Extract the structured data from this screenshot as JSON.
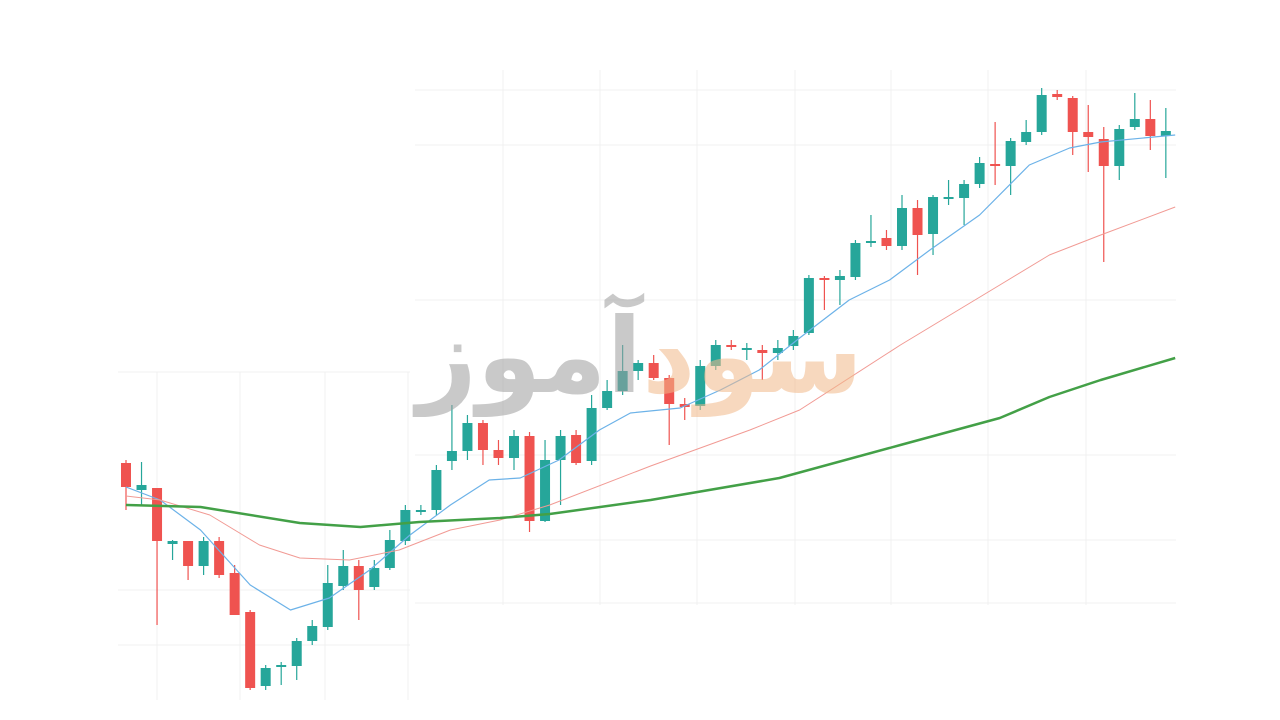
{
  "chart_data": {
    "type": "candlestick",
    "watermark": {
      "first": "سود",
      "second": "آموز"
    },
    "up_color": "#26a69a",
    "down_color": "#ef5350",
    "ylim": [
      0,
      720
    ],
    "open": [
      257,
      230,
      232,
      176,
      179,
      154,
      179,
      147,
      108,
      34,
      53,
      54,
      79,
      93,
      134,
      154,
      133,
      152,
      179,
      208,
      210,
      259,
      269,
      297,
      270,
      262,
      284,
      199,
      260,
      285,
      259,
      312,
      329,
      349,
      357,
      342,
      316,
      314,
      354,
      375,
      370,
      370,
      367,
      374,
      387,
      442,
      440,
      443,
      477,
      482,
      474,
      512,
      486,
      521,
      522,
      536,
      556,
      554,
      578,
      588,
      626,
      622,
      588,
      581,
      554,
      593,
      601,
      584
    ],
    "high": [
      260,
      258,
      232,
      180,
      179,
      183,
      183,
      155,
      110,
      55,
      58,
      82,
      100,
      155,
      170,
      160,
      160,
      190,
      215,
      215,
      255,
      315,
      305,
      300,
      280,
      290,
      288,
      280,
      290,
      290,
      325,
      340,
      375,
      360,
      365,
      345,
      322,
      360,
      380,
      380,
      377,
      375,
      380,
      390,
      445,
      444,
      450,
      480,
      505,
      490,
      525,
      520,
      525,
      540,
      540,
      563,
      598,
      582,
      600,
      632,
      630,
      624,
      615,
      593,
      595,
      627,
      620,
      612
    ],
    "low": [
      210,
      215,
      95,
      160,
      140,
      145,
      142,
      105,
      30,
      30,
      35,
      40,
      75,
      90,
      130,
      100,
      130,
      150,
      175,
      205,
      205,
      250,
      260,
      255,
      255,
      250,
      188,
      198,
      215,
      255,
      255,
      310,
      325,
      340,
      340,
      275,
      300,
      310,
      350,
      370,
      360,
      340,
      360,
      370,
      385,
      410,
      415,
      440,
      473,
      470,
      470,
      445,
      465,
      515,
      495,
      532,
      535,
      525,
      575,
      585,
      620,
      565,
      548,
      458,
      540,
      590,
      570,
      542
    ],
    "close": [
      233,
      235,
      179,
      179,
      154,
      179,
      145,
      105,
      32,
      52,
      55,
      79,
      94,
      137,
      154,
      130,
      152,
      180,
      210,
      210,
      250,
      269,
      297,
      270,
      262,
      284,
      199,
      260,
      284,
      257,
      312,
      329,
      349,
      357,
      342,
      316,
      313,
      354,
      375,
      373,
      372,
      367,
      372,
      384,
      442,
      440,
      444,
      477,
      479,
      474,
      512,
      485,
      523,
      523,
      536,
      557,
      554,
      579,
      588,
      625,
      623,
      588,
      583,
      554,
      591,
      601,
      584,
      589
    ],
    "series": [
      {
        "color": "#6cb2e8",
        "width": 1.2,
        "x": [
          0,
          2.2,
          4.8,
          8,
          10.6,
          13.1,
          15.7,
          18.3,
          20.9,
          23.4,
          25.4,
          27.9,
          30.5,
          32.5,
          35.7,
          38.3,
          40.8,
          43.4,
          46.6,
          49.2,
          51.8,
          55,
          58.2,
          60.8,
          62.8,
          67.6
        ],
        "values": [
          233,
          220,
          190,
          135,
          110,
          122,
          150,
          185,
          215,
          240,
          242,
          260,
          290,
          307,
          312,
          330,
          350,
          382,
          420,
          440,
          470,
          505,
          555,
          572,
          578,
          585
        ]
      },
      {
        "color": "#f19a94",
        "width": 1,
        "x": [
          0,
          2.2,
          5.4,
          8.6,
          11.2,
          14.4,
          17.6,
          20.9,
          24.1,
          27.3,
          33.8,
          40.2,
          43.4,
          49.9,
          56.3,
          59.5,
          62.8,
          67.6
        ],
        "values": [
          224,
          220,
          205,
          175,
          162,
          160,
          170,
          190,
          200,
          215,
          254,
          290,
          310,
          375,
          435,
          465,
          485,
          513
        ]
      },
      {
        "color": "#43a047",
        "width": 2.5,
        "x": [
          0,
          4.8,
          11.2,
          15.1,
          18.9,
          24.1,
          27.3,
          33.8,
          42.1,
          49.9,
          56.3,
          59.5,
          62.8,
          67.6
        ],
        "values": [
          215,
          213,
          197,
          193,
          198,
          202,
          206,
          220,
          242,
          275,
          302,
          323,
          340,
          362
        ]
      }
    ]
  }
}
